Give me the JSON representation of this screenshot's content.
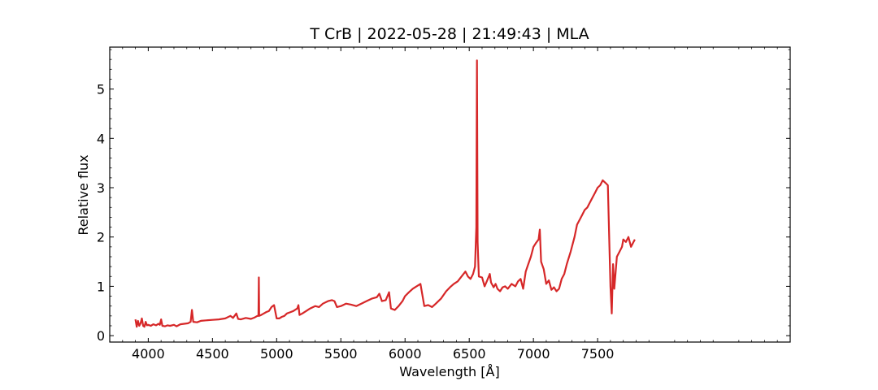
{
  "chart_data": {
    "type": "line",
    "title": "T CrB | 2022-05-28 | 21:49:43 | MLA",
    "xlabel": "Wavelength [Å]",
    "ylabel": "Relative flux",
    "xlim": [
      3700,
      9000
    ],
    "ylim": [
      -0.13,
      5.85
    ],
    "x_ticks": [
      4000,
      4500,
      5000,
      5500,
      6000,
      6500,
      7000,
      7500
    ],
    "y_ticks": [
      0,
      1,
      2,
      3,
      4,
      5
    ],
    "grid": false,
    "legend": "none",
    "colors": {
      "line": "#d62728",
      "axes": "#000000"
    },
    "series": [
      {
        "points": [
          [
            3900,
            0.33
          ],
          [
            3910,
            0.18
          ],
          [
            3920,
            0.3
          ],
          [
            3930,
            0.2
          ],
          [
            3940,
            0.25
          ],
          [
            3950,
            0.35
          ],
          [
            3960,
            0.2
          ],
          [
            3970,
            0.18
          ],
          [
            3980,
            0.28
          ],
          [
            3990,
            0.21
          ],
          [
            4000,
            0.22
          ],
          [
            4020,
            0.2
          ],
          [
            4040,
            0.23
          ],
          [
            4060,
            0.21
          ],
          [
            4080,
            0.24
          ],
          [
            4090,
            0.22
          ],
          [
            4100,
            0.33
          ],
          [
            4110,
            0.2
          ],
          [
            4130,
            0.19
          ],
          [
            4150,
            0.21
          ],
          [
            4170,
            0.2
          ],
          [
            4200,
            0.22
          ],
          [
            4220,
            0.19
          ],
          [
            4250,
            0.23
          ],
          [
            4280,
            0.24
          ],
          [
            4310,
            0.25
          ],
          [
            4330,
            0.28
          ],
          [
            4340,
            0.52
          ],
          [
            4350,
            0.28
          ],
          [
            4380,
            0.27
          ],
          [
            4410,
            0.3
          ],
          [
            4450,
            0.31
          ],
          [
            4500,
            0.32
          ],
          [
            4550,
            0.33
          ],
          [
            4600,
            0.35
          ],
          [
            4640,
            0.4
          ],
          [
            4660,
            0.36
          ],
          [
            4686,
            0.45
          ],
          [
            4700,
            0.34
          ],
          [
            4720,
            0.33
          ],
          [
            4760,
            0.36
          ],
          [
            4800,
            0.34
          ],
          [
            4830,
            0.37
          ],
          [
            4850,
            0.4
          ],
          [
            4858,
            0.4
          ],
          [
            4861,
            1.18
          ],
          [
            4864,
            0.4
          ],
          [
            4880,
            0.42
          ],
          [
            4900,
            0.45
          ],
          [
            4920,
            0.48
          ],
          [
            4940,
            0.5
          ],
          [
            4960,
            0.58
          ],
          [
            4980,
            0.62
          ],
          [
            5000,
            0.35
          ],
          [
            5020,
            0.35
          ],
          [
            5040,
            0.38
          ],
          [
            5060,
            0.4
          ],
          [
            5080,
            0.45
          ],
          [
            5100,
            0.47
          ],
          [
            5130,
            0.5
          ],
          [
            5160,
            0.55
          ],
          [
            5170,
            0.62
          ],
          [
            5178,
            0.42
          ],
          [
            5200,
            0.45
          ],
          [
            5230,
            0.5
          ],
          [
            5260,
            0.55
          ],
          [
            5300,
            0.6
          ],
          [
            5330,
            0.58
          ],
          [
            5360,
            0.65
          ],
          [
            5400,
            0.7
          ],
          [
            5430,
            0.72
          ],
          [
            5450,
            0.7
          ],
          [
            5470,
            0.58
          ],
          [
            5500,
            0.6
          ],
          [
            5540,
            0.65
          ],
          [
            5580,
            0.63
          ],
          [
            5620,
            0.6
          ],
          [
            5660,
            0.65
          ],
          [
            5700,
            0.7
          ],
          [
            5740,
            0.75
          ],
          [
            5780,
            0.78
          ],
          [
            5800,
            0.85
          ],
          [
            5820,
            0.7
          ],
          [
            5850,
            0.72
          ],
          [
            5876,
            0.88
          ],
          [
            5890,
            0.55
          ],
          [
            5920,
            0.52
          ],
          [
            5950,
            0.6
          ],
          [
            5980,
            0.7
          ],
          [
            6000,
            0.8
          ],
          [
            6030,
            0.88
          ],
          [
            6060,
            0.95
          ],
          [
            6090,
            1.0
          ],
          [
            6120,
            1.05
          ],
          [
            6150,
            0.6
          ],
          [
            6180,
            0.62
          ],
          [
            6210,
            0.58
          ],
          [
            6240,
            0.65
          ],
          [
            6280,
            0.75
          ],
          [
            6320,
            0.9
          ],
          [
            6350,
            0.98
          ],
          [
            6380,
            1.05
          ],
          [
            6410,
            1.1
          ],
          [
            6440,
            1.2
          ],
          [
            6470,
            1.3
          ],
          [
            6490,
            1.2
          ],
          [
            6510,
            1.15
          ],
          [
            6530,
            1.25
          ],
          [
            6545,
            1.4
          ],
          [
            6555,
            2.2
          ],
          [
            6560,
            5.58
          ],
          [
            6565,
            1.9
          ],
          [
            6575,
            1.2
          ],
          [
            6600,
            1.18
          ],
          [
            6620,
            1.0
          ],
          [
            6640,
            1.12
          ],
          [
            6660,
            1.25
          ],
          [
            6670,
            1.08
          ],
          [
            6690,
            0.98
          ],
          [
            6705,
            1.05
          ],
          [
            6720,
            0.95
          ],
          [
            6740,
            0.9
          ],
          [
            6760,
            0.98
          ],
          [
            6780,
            1.0
          ],
          [
            6800,
            0.95
          ],
          [
            6830,
            1.05
          ],
          [
            6860,
            1.0
          ],
          [
            6880,
            1.1
          ],
          [
            6900,
            1.15
          ],
          [
            6920,
            0.95
          ],
          [
            6940,
            1.3
          ],
          [
            6960,
            1.45
          ],
          [
            6980,
            1.6
          ],
          [
            7000,
            1.8
          ],
          [
            7020,
            1.88
          ],
          [
            7040,
            1.95
          ],
          [
            7050,
            2.15
          ],
          [
            7060,
            1.5
          ],
          [
            7080,
            1.35
          ],
          [
            7100,
            1.05
          ],
          [
            7120,
            1.12
          ],
          [
            7140,
            0.93
          ],
          [
            7160,
            0.98
          ],
          [
            7180,
            0.9
          ],
          [
            7200,
            0.95
          ],
          [
            7220,
            1.15
          ],
          [
            7240,
            1.25
          ],
          [
            7260,
            1.45
          ],
          [
            7290,
            1.7
          ],
          [
            7320,
            2.0
          ],
          [
            7340,
            2.25
          ],
          [
            7360,
            2.35
          ],
          [
            7380,
            2.45
          ],
          [
            7400,
            2.55
          ],
          [
            7420,
            2.6
          ],
          [
            7440,
            2.7
          ],
          [
            7460,
            2.8
          ],
          [
            7480,
            2.9
          ],
          [
            7500,
            3.0
          ],
          [
            7520,
            3.05
          ],
          [
            7540,
            3.15
          ],
          [
            7560,
            3.1
          ],
          [
            7580,
            3.05
          ],
          [
            7600,
            1.0
          ],
          [
            7610,
            0.45
          ],
          [
            7620,
            1.45
          ],
          [
            7630,
            0.95
          ],
          [
            7650,
            1.6
          ],
          [
            7670,
            1.7
          ],
          [
            7690,
            1.8
          ],
          [
            7700,
            1.95
          ],
          [
            7720,
            1.9
          ],
          [
            7740,
            2.0
          ],
          [
            7760,
            1.8
          ],
          [
            7780,
            1.9
          ],
          [
            7790,
            1.95
          ]
        ]
      }
    ]
  }
}
